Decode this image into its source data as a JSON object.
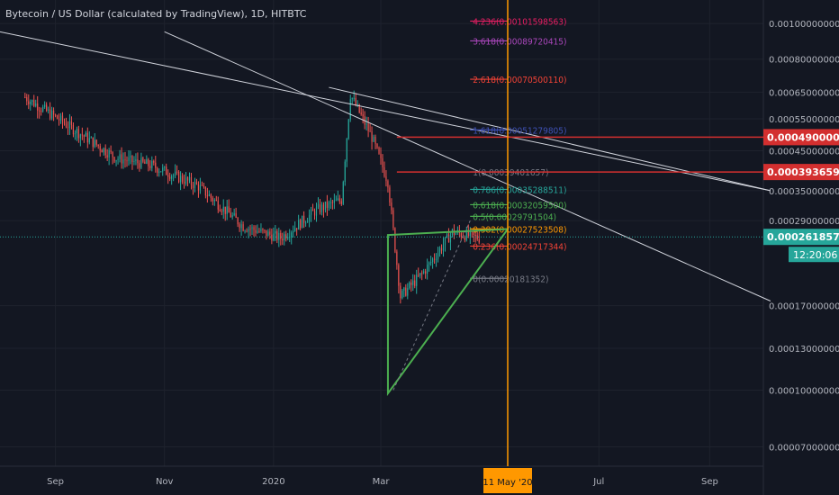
{
  "title": "Bytecoin / US Dollar (calculated by TradingView), 1D, HITBTC",
  "colors": {
    "background": "#131722",
    "candle_up": "#26a69a",
    "candle_down": "#ef5350",
    "grid": "#1e222d",
    "axis_text": "#b2b5be",
    "trendline": "#d1d4dc",
    "triangle": "#4caf50",
    "vline": "#ff9800",
    "level_red": "#d32f2f",
    "price_line": "#26a69a"
  },
  "chart_data": {
    "type": "candlestick",
    "symbol": "Bytecoin / US Dollar",
    "interval": "1D",
    "exchange": "HITBTC",
    "y_axis": {
      "scale": "log",
      "ylim": [
        6.2e-05,
        0.00116
      ],
      "ticks": [
        "0.00100000000",
        "0.00080000000",
        "0.00065000000",
        "0.00055000000",
        "0.00045000000",
        "0.00035000000",
        "0.00029000000",
        "0.00017000000",
        "0.00013000000",
        "0.00010000000",
        "0.00007000000"
      ]
    },
    "x_axis": {
      "ticks": [
        "Sep",
        "Nov",
        "2020",
        "Mar",
        "Jul",
        "Sep"
      ]
    },
    "candles_summary": [
      {
        "date": "2019-08-15",
        "price": 0.00063
      },
      {
        "date": "2019-09-10",
        "price": 0.00052
      },
      {
        "date": "2019-10-05",
        "price": 0.00043
      },
      {
        "date": "2019-10-25",
        "price": 0.00041
      },
      {
        "date": "2019-11-20",
        "price": 0.00036
      },
      {
        "date": "2019-12-15",
        "price": 0.00028
      },
      {
        "date": "2020-01-05",
        "price": 0.00026
      },
      {
        "date": "2020-01-25",
        "price": 0.00031
      },
      {
        "date": "2020-02-08",
        "price": 0.00033
      },
      {
        "date": "2020-02-13",
        "price": 0.00064
      },
      {
        "date": "2020-02-25",
        "price": 0.00049
      },
      {
        "date": "2020-03-05",
        "price": 0.00037
      },
      {
        "date": "2020-03-12",
        "price": 0.00018
      },
      {
        "date": "2020-03-25",
        "price": 0.00021
      },
      {
        "date": "2020-04-10",
        "price": 0.00027
      },
      {
        "date": "2020-04-25",
        "price": 0.00026
      }
    ],
    "fib_levels": [
      {
        "ratio": "4.236",
        "label": "4.236(0.00101598563)",
        "color": "#e91e63"
      },
      {
        "ratio": "3.618",
        "label": "3.618(0.00089720415)",
        "color": "#ab47bc"
      },
      {
        "ratio": "2.618",
        "label": "2.618(0.00070500110)",
        "color": "#f44336"
      },
      {
        "ratio": "1.618",
        "label": "1.618(0.00051279805)",
        "color": "#3f51b5"
      },
      {
        "ratio": "1",
        "label": "1(0.00039401657)",
        "color": "#787b86"
      },
      {
        "ratio": "0.786",
        "label": "0.786(0.00035288511)",
        "color": "#26a69a"
      },
      {
        "ratio": "0.618",
        "label": "0.618(0.00032059500)",
        "color": "#4caf50"
      },
      {
        "ratio": "0.5",
        "label": "0.5(0.00029791504)",
        "color": "#4caf50"
      },
      {
        "ratio": "0.382",
        "label": "0.382(0.00027523508)",
        "color": "#ff9800"
      },
      {
        "ratio": "0.236",
        "label": "0.236(0.00024717344)",
        "color": "#f44336"
      },
      {
        "ratio": "0",
        "label": "0(0.00020181352)",
        "color": "#787b86"
      }
    ],
    "horizontal_levels": [
      {
        "label": "0.00049000000",
        "value": 0.00049,
        "color": "#d32f2f"
      },
      {
        "label": "0.00039365906",
        "value": 0.00039365906,
        "color": "#d32f2f"
      }
    ],
    "current_price": {
      "label": "0.00026185774",
      "value": 0.00026185774,
      "countdown": "12:20:06",
      "color": "#26a69a"
    },
    "vertical_marker": {
      "label": "11 May '20",
      "date": "2020-05-11",
      "color": "#ff9800"
    },
    "trendlines": [
      {
        "from": {
          "date": "2019-08-01",
          "price": 0.00095
        },
        "to": {
          "date": "2020-10-05",
          "price": 0.00035
        }
      },
      {
        "from": {
          "date": "2019-11-01",
          "price": 0.00095
        },
        "to": {
          "date": "2020-10-05",
          "price": 0.000175
        }
      },
      {
        "from": {
          "date": "2020-02-01",
          "price": 0.00067
        },
        "to": {
          "date": "2020-10-05",
          "price": 0.00035
        }
      }
    ],
    "triangle": [
      {
        "date": "2020-03-05",
        "price": 0.000265
      },
      {
        "date": "2020-05-11",
        "price": 0.000275
      },
      {
        "date": "2020-03-05",
        "price": 9.8e-05
      }
    ]
  }
}
